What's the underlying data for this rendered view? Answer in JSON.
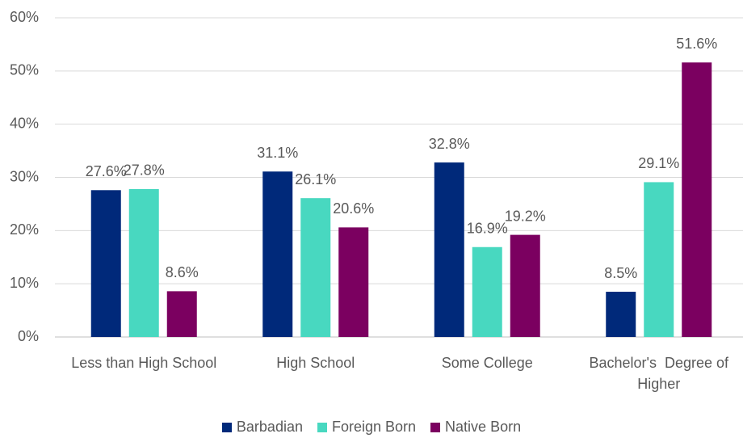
{
  "chart_data": {
    "type": "bar",
    "categories": [
      "Less than High School",
      "High School",
      "Some College",
      "Bachelor's  Degree of Higher"
    ],
    "series": [
      {
        "name": "Barbadian",
        "color": "#00297a",
        "values": [
          27.6,
          31.1,
          32.8,
          8.5
        ],
        "value_labels": [
          "27.6%",
          "31.1%",
          "32.8%",
          "8.5%"
        ]
      },
      {
        "name": "Foreign Born",
        "color": "#48d8c0",
        "values": [
          27.8,
          26.1,
          16.9,
          29.1
        ],
        "value_labels": [
          "27.8%",
          "26.1%",
          "16.9%",
          "29.1%"
        ]
      },
      {
        "name": "Native Born",
        "color": "#7b0060",
        "values": [
          8.6,
          20.6,
          19.2,
          51.6
        ],
        "value_labels": [
          "8.6%",
          "20.6%",
          "19.2%",
          "51.6%"
        ]
      }
    ],
    "ylim": [
      0,
      60
    ],
    "yticks": [
      {
        "value": 0,
        "label": "0%"
      },
      {
        "value": 10,
        "label": "10%"
      },
      {
        "value": 20,
        "label": "20%"
      },
      {
        "value": 30,
        "label": "30%"
      },
      {
        "value": 40,
        "label": "40%"
      },
      {
        "value": 50,
        "label": "50%"
      },
      {
        "value": 60,
        "label": "60%"
      }
    ],
    "grid": true,
    "legend": "bottom"
  }
}
